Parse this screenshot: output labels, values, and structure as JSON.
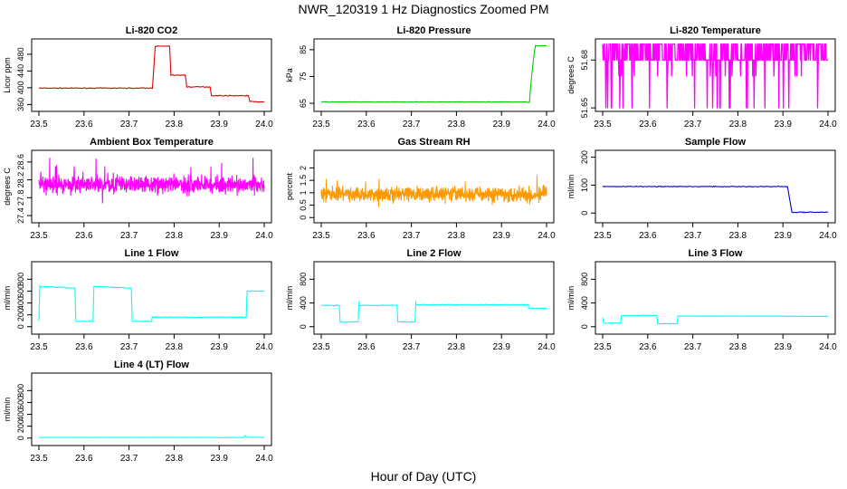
{
  "figure": {
    "title": "NWR_120319  1 Hz Diagnostics Zoomed PM",
    "xlabel": "Hour of Day (UTC)"
  },
  "chart_data": [
    {
      "type": "line",
      "title": "Li-820 CO2",
      "ylabel": "Licor ppm",
      "xlim": [
        23.5,
        24.0
      ],
      "ylim": [
        350,
        510
      ],
      "yticks": [
        360,
        400,
        440,
        480
      ],
      "xticks": [
        23.5,
        23.6,
        23.7,
        23.8,
        23.9,
        24.0
      ],
      "color": "#e00000",
      "noise": 1,
      "segments": [
        {
          "x": [
            23.5,
            23.752
          ],
          "y": [
            399,
            399
          ]
        },
        {
          "x": [
            23.752,
            23.758
          ],
          "y": [
            399,
            499
          ]
        },
        {
          "x": [
            23.758,
            23.79
          ],
          "y": [
            499,
            499
          ]
        },
        {
          "x": [
            23.79,
            23.793
          ],
          "y": [
            499,
            430
          ]
        },
        {
          "x": [
            23.793,
            23.825
          ],
          "y": [
            430,
            430
          ]
        },
        {
          "x": [
            23.825,
            23.828
          ],
          "y": [
            430,
            402
          ]
        },
        {
          "x": [
            23.828,
            23.88
          ],
          "y": [
            402,
            402
          ]
        },
        {
          "x": [
            23.88,
            23.883
          ],
          "y": [
            402,
            381
          ]
        },
        {
          "x": [
            23.883,
            23.965
          ],
          "y": [
            381,
            381
          ]
        },
        {
          "x": [
            23.965,
            23.968
          ],
          "y": [
            381,
            367
          ]
        },
        {
          "x": [
            23.968,
            24.0
          ],
          "y": [
            367,
            366
          ]
        }
      ]
    },
    {
      "type": "line",
      "title": "Li-820 Pressure",
      "ylabel": "kPa",
      "xlim": [
        23.5,
        24.0
      ],
      "ylim": [
        63,
        88
      ],
      "yticks": [
        65,
        75,
        85
      ],
      "xticks": [
        23.5,
        23.6,
        23.7,
        23.8,
        23.9,
        24.0
      ],
      "color": "#00cc00",
      "noise": 0.1,
      "segments": [
        {
          "x": [
            23.5,
            23.95
          ],
          "y": [
            65.5,
            65.5
          ]
        },
        {
          "x": [
            23.95,
            23.962
          ],
          "y": [
            65.5,
            65.4
          ]
        },
        {
          "x": [
            23.962,
            23.965
          ],
          "y": [
            65.4,
            72
          ]
        },
        {
          "x": [
            23.965,
            23.97
          ],
          "y": [
            72,
            80
          ]
        },
        {
          "x": [
            23.97,
            23.975
          ],
          "y": [
            80,
            86.5
          ]
        },
        {
          "x": [
            23.975,
            24.0
          ],
          "y": [
            86.5,
            86.5
          ]
        }
      ]
    },
    {
      "type": "line",
      "title": "Li-820 Temperature",
      "ylabel": "degrees C",
      "xlim": [
        23.5,
        24.0
      ],
      "ylim": [
        51.6495,
        51.6915
      ],
      "yticks": [
        51.65,
        51.68
      ],
      "xticks": [
        23.5,
        23.6,
        23.7,
        23.8,
        23.9,
        24.0
      ],
      "color": "#ff00ff",
      "quantized": true,
      "levels": [
        51.65,
        51.67,
        51.68,
        51.69
      ]
    },
    {
      "type": "line",
      "title": "Ambient Box Temperature",
      "ylabel": "degrees C",
      "xlim": [
        23.5,
        24.0
      ],
      "ylim": [
        27.3,
        28.8
      ],
      "yticks": [
        27.4,
        27.8,
        28.2,
        28.6
      ],
      "xticks": [
        23.5,
        23.6,
        23.7,
        23.8,
        23.9,
        24.0
      ],
      "color": "#ff00ff",
      "mean": 28.1,
      "noise": 0.18,
      "range": [
        27.35,
        28.7
      ]
    },
    {
      "type": "line",
      "title": "Gas Stream RH",
      "ylabel": "percent",
      "xlim": [
        23.5,
        24.0
      ],
      "ylim": [
        -0.1,
        2.6
      ],
      "yticks": [
        0.0,
        0.5,
        1.0,
        1.5,
        2.0
      ],
      "xticks": [
        23.5,
        23.6,
        23.7,
        23.8,
        23.9,
        24.0
      ],
      "color": "#ff9900",
      "mean": 0.95,
      "noise": 0.28,
      "range": [
        0.1,
        2.4
      ]
    },
    {
      "type": "line",
      "title": "Sample Flow",
      "ylabel": "ml/min",
      "xlim": [
        23.5,
        24.0
      ],
      "ylim": [
        -25,
        215
      ],
      "yticks": [
        0,
        100,
        200
      ],
      "xticks": [
        23.5,
        23.6,
        23.7,
        23.8,
        23.9,
        24.0
      ],
      "color": "#0000cc",
      "noise": 1.5,
      "segments": [
        {
          "x": [
            23.5,
            23.91
          ],
          "y": [
            95,
            95
          ]
        },
        {
          "x": [
            23.91,
            23.92
          ],
          "y": [
            95,
            3
          ]
        },
        {
          "x": [
            23.92,
            24.0
          ],
          "y": [
            3,
            3
          ]
        }
      ]
    },
    {
      "type": "line",
      "title": "Line 1 Flow",
      "ylabel": "ml/min",
      "xlim": [
        23.5,
        24.0
      ],
      "ylim": [
        -80,
        1050
      ],
      "yticks": [
        0,
        200,
        400,
        600,
        800
      ],
      "xticks": [
        23.5,
        23.6,
        23.7,
        23.8,
        23.9,
        24.0
      ],
      "color": "#00ffff",
      "noise": 8,
      "segments": [
        {
          "x": [
            23.5,
            23.502
          ],
          "y": [
            100,
            690
          ]
        },
        {
          "x": [
            23.502,
            23.58
          ],
          "y": [
            680,
            650
          ]
        },
        {
          "x": [
            23.58,
            23.582
          ],
          "y": [
            650,
            90
          ]
        },
        {
          "x": [
            23.582,
            23.62
          ],
          "y": [
            90,
            90
          ]
        },
        {
          "x": [
            23.62,
            23.622
          ],
          "y": [
            90,
            680
          ]
        },
        {
          "x": [
            23.622,
            23.705
          ],
          "y": [
            680,
            650
          ]
        },
        {
          "x": [
            23.705,
            23.707
          ],
          "y": [
            650,
            90
          ]
        },
        {
          "x": [
            23.707,
            23.75
          ],
          "y": [
            90,
            90
          ]
        },
        {
          "x": [
            23.75,
            23.752
          ],
          "y": [
            90,
            160
          ]
        },
        {
          "x": [
            23.752,
            23.96
          ],
          "y": [
            160,
            160
          ]
        },
        {
          "x": [
            23.96,
            23.962
          ],
          "y": [
            160,
            600
          ]
        },
        {
          "x": [
            23.962,
            24.0
          ],
          "y": [
            600,
            600
          ]
        }
      ]
    },
    {
      "type": "line",
      "title": "Line 2 Flow",
      "ylabel": "ml/min",
      "xlim": [
        23.5,
        24.0
      ],
      "ylim": [
        -80,
        1050
      ],
      "yticks": [
        0,
        400,
        800
      ],
      "xticks": [
        23.5,
        23.6,
        23.7,
        23.8,
        23.9,
        24.0
      ],
      "color": "#00ffff",
      "noise": 8,
      "segments": [
        {
          "x": [
            23.5,
            23.54
          ],
          "y": [
            360,
            360
          ]
        },
        {
          "x": [
            23.54,
            23.542
          ],
          "y": [
            360,
            80
          ]
        },
        {
          "x": [
            23.542,
            23.582
          ],
          "y": [
            80,
            80
          ]
        },
        {
          "x": [
            23.582,
            23.584
          ],
          "y": [
            80,
            420
          ]
        },
        {
          "x": [
            23.584,
            23.668
          ],
          "y": [
            360,
            360
          ]
        },
        {
          "x": [
            23.668,
            23.67
          ],
          "y": [
            360,
            80
          ]
        },
        {
          "x": [
            23.67,
            23.708
          ],
          "y": [
            80,
            80
          ]
        },
        {
          "x": [
            23.708,
            23.71
          ],
          "y": [
            80,
            430
          ]
        },
        {
          "x": [
            23.71,
            23.96
          ],
          "y": [
            370,
            370
          ]
        },
        {
          "x": [
            23.96,
            24.0
          ],
          "y": [
            310,
            310
          ]
        }
      ]
    },
    {
      "type": "line",
      "title": "Line 3 Flow",
      "ylabel": "ml/min",
      "xlim": [
        23.5,
        24.0
      ],
      "ylim": [
        -80,
        1050
      ],
      "yticks": [
        0,
        400,
        800
      ],
      "xticks": [
        23.5,
        23.6,
        23.7,
        23.8,
        23.9,
        24.0
      ],
      "color": "#00ffff",
      "noise": 4,
      "segments": [
        {
          "x": [
            23.5,
            23.502
          ],
          "y": [
            160,
            60
          ]
        },
        {
          "x": [
            23.502,
            23.54
          ],
          "y": [
            60,
            60
          ]
        },
        {
          "x": [
            23.54,
            23.542
          ],
          "y": [
            60,
            190
          ]
        },
        {
          "x": [
            23.542,
            23.62
          ],
          "y": [
            190,
            190
          ]
        },
        {
          "x": [
            23.62,
            23.622
          ],
          "y": [
            190,
            50
          ]
        },
        {
          "x": [
            23.622,
            23.665
          ],
          "y": [
            50,
            50
          ]
        },
        {
          "x": [
            23.665,
            23.667
          ],
          "y": [
            50,
            180
          ]
        },
        {
          "x": [
            23.667,
            24.0
          ],
          "y": [
            180,
            175
          ]
        }
      ]
    },
    {
      "type": "line",
      "title": "Line 4 (LT) Flow",
      "ylabel": "ml/min",
      "xlim": [
        23.5,
        24.0
      ],
      "ylim": [
        -80,
        1050
      ],
      "yticks": [
        0,
        200,
        400,
        600,
        800
      ],
      "xticks": [
        23.5,
        23.6,
        23.7,
        23.8,
        23.9,
        24.0
      ],
      "color": "#00ffff",
      "noise": 1.5,
      "segments": [
        {
          "x": [
            23.5,
            23.955
          ],
          "y": [
            10,
            10
          ]
        },
        {
          "x": [
            23.955,
            23.958
          ],
          "y": [
            10,
            40
          ]
        },
        {
          "x": [
            23.958,
            23.962
          ],
          "y": [
            40,
            12
          ]
        },
        {
          "x": [
            23.962,
            24.0
          ],
          "y": [
            12,
            12
          ]
        }
      ]
    }
  ]
}
